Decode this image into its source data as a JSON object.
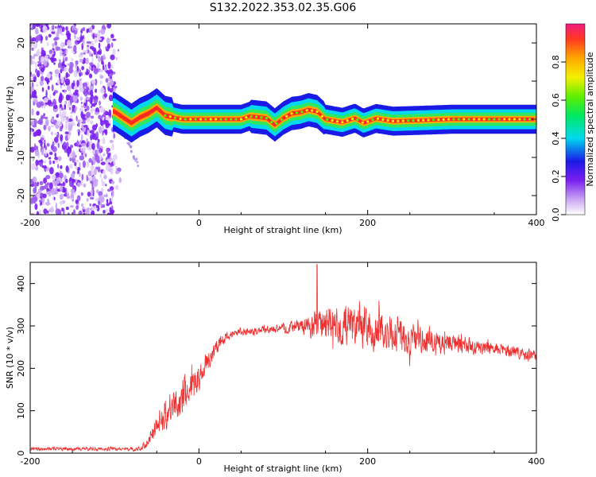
{
  "title": "S132.2022.353.02.35.G06",
  "chart_data": [
    {
      "type": "heatmap",
      "xlabel": "Height of straight line (km)",
      "ylabel": "Frequency (Hz)",
      "xlim": [
        -200,
        400
      ],
      "ylim": [
        -25,
        25
      ],
      "x_ticks": [
        -200,
        0,
        200,
        400
      ],
      "y_ticks": [
        -20,
        -10,
        0,
        10,
        20
      ],
      "colorbar": {
        "label": "Normalized spectral amplitude",
        "range": [
          0,
          1
        ],
        "ticks": [
          "0.0",
          "0.2",
          "0.4",
          "0.6",
          "0.8"
        ]
      },
      "ridge": [
        {
          "x": -100,
          "y": 2.0
        },
        {
          "x": -90,
          "y": 0.5
        },
        {
          "x": -80,
          "y": -1.0
        },
        {
          "x": -70,
          "y": 0.5
        },
        {
          "x": -60,
          "y": 1.5
        },
        {
          "x": -50,
          "y": 3.0
        },
        {
          "x": -40,
          "y": 1.0
        },
        {
          "x": -20,
          "y": 0.0
        },
        {
          "x": 0,
          "y": 0.0
        },
        {
          "x": 50,
          "y": 0.0
        },
        {
          "x": 60,
          "y": 0.8
        },
        {
          "x": 80,
          "y": 0.3
        },
        {
          "x": 90,
          "y": -1.5
        },
        {
          "x": 100,
          "y": 0.3
        },
        {
          "x": 110,
          "y": 1.5
        },
        {
          "x": 120,
          "y": 1.8
        },
        {
          "x": 130,
          "y": 2.5
        },
        {
          "x": 140,
          "y": 2.0
        },
        {
          "x": 150,
          "y": 0.0
        },
        {
          "x": 170,
          "y": -0.8
        },
        {
          "x": 185,
          "y": 0.3
        },
        {
          "x": 195,
          "y": -1.0
        },
        {
          "x": 210,
          "y": 0.2
        },
        {
          "x": 230,
          "y": -0.5
        },
        {
          "x": 260,
          "y": -0.3
        },
        {
          "x": 300,
          "y": 0.0
        },
        {
          "x": 400,
          "y": 0.0
        }
      ]
    },
    {
      "type": "line",
      "xlabel": "Height of straight line (km)",
      "ylabel": "SNR (10 * v/v)",
      "xlim": [
        -200,
        400
      ],
      "ylim": [
        0,
        450
      ],
      "x_ticks": [
        -200,
        0,
        200,
        400
      ],
      "y_ticks": [
        0,
        100,
        200,
        300,
        400
      ],
      "series": [
        {
          "color": "#ee3030",
          "envelope": [
            {
              "x": -200,
              "y": 10,
              "spread": 5
            },
            {
              "x": -100,
              "y": 10,
              "spread": 6
            },
            {
              "x": -70,
              "y": 10,
              "spread": 6
            },
            {
              "x": -60,
              "y": 30,
              "spread": 20
            },
            {
              "x": -40,
              "y": 90,
              "spread": 45
            },
            {
              "x": -20,
              "y": 130,
              "spread": 60
            },
            {
              "x": 0,
              "y": 180,
              "spread": 45
            },
            {
              "x": 20,
              "y": 250,
              "spread": 25
            },
            {
              "x": 40,
              "y": 285,
              "spread": 12
            },
            {
              "x": 80,
              "y": 290,
              "spread": 12
            },
            {
              "x": 120,
              "y": 300,
              "spread": 20
            },
            {
              "x": 140,
              "y": 305,
              "spread": 50
            },
            {
              "x": 170,
              "y": 300,
              "spread": 60
            },
            {
              "x": 200,
              "y": 290,
              "spread": 60
            },
            {
              "x": 250,
              "y": 275,
              "spread": 55
            },
            {
              "x": 300,
              "y": 260,
              "spread": 30
            },
            {
              "x": 350,
              "y": 245,
              "spread": 20
            },
            {
              "x": 400,
              "y": 230,
              "spread": 20
            }
          ],
          "peak": {
            "x": 140,
            "y": 445
          }
        }
      ]
    }
  ]
}
